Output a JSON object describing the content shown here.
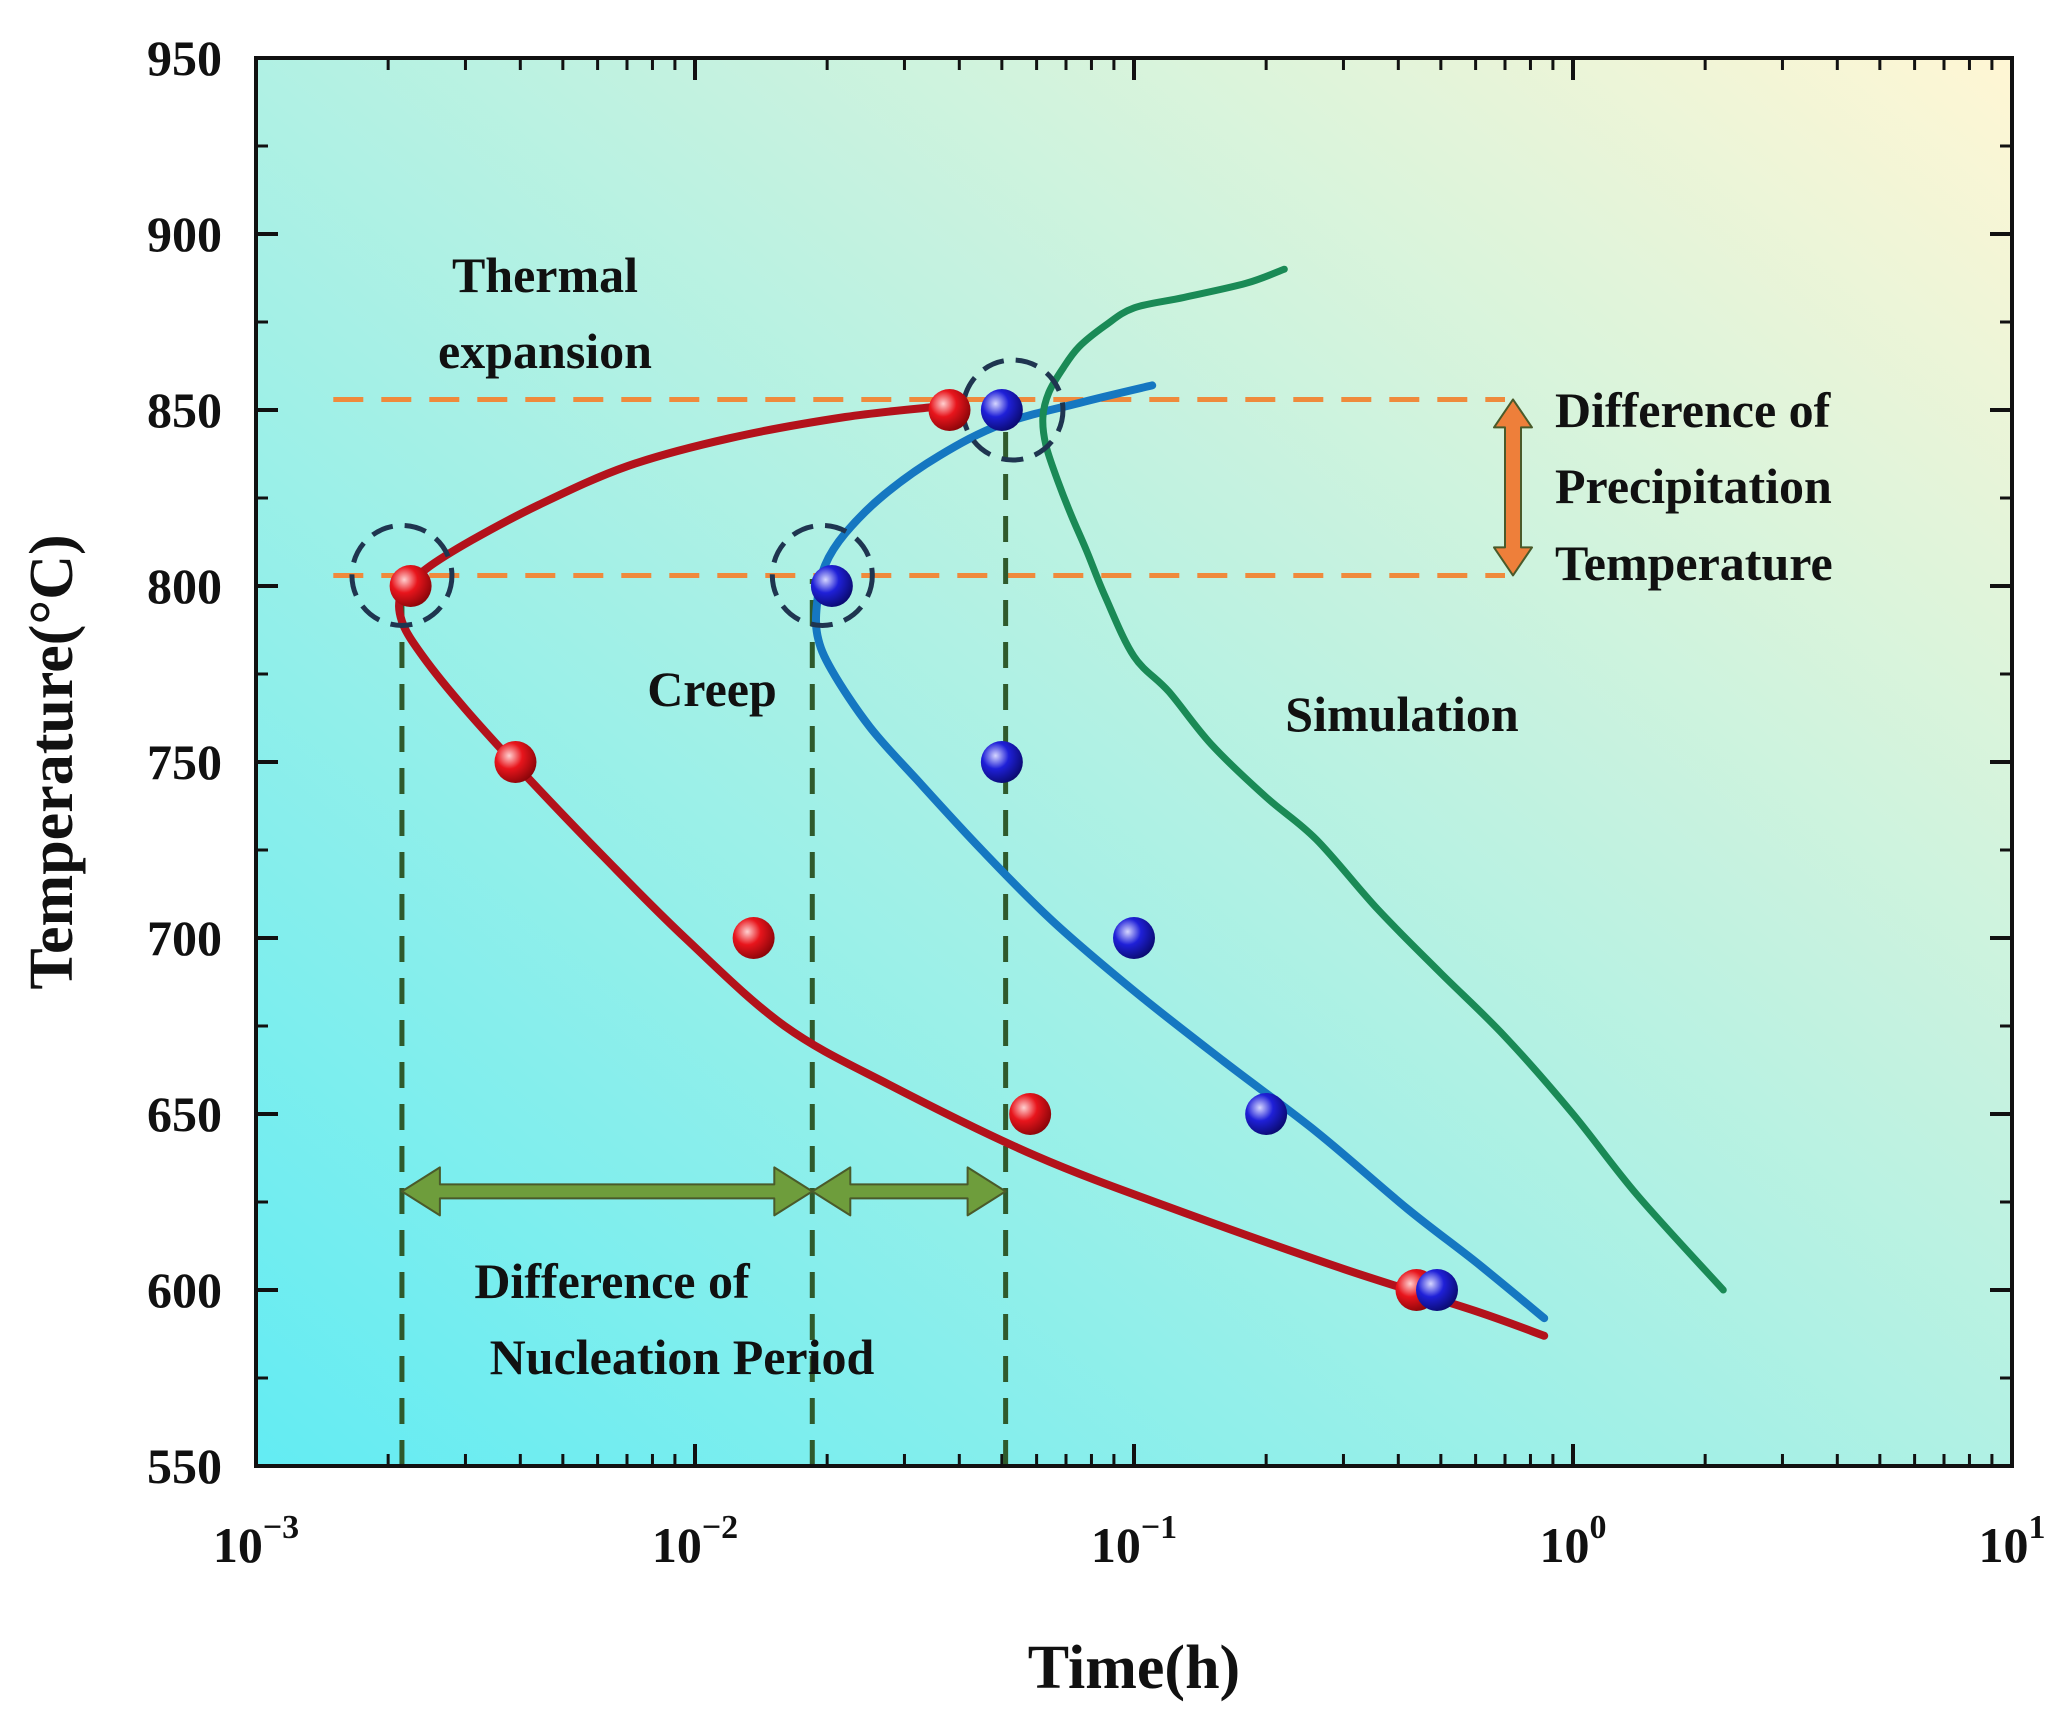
{
  "chart_data": {
    "type": "scatter",
    "xlabel": "Time(h)",
    "ylabel": "Temperature(°C)",
    "xscale": "log",
    "xlim": [
      0.001,
      10
    ],
    "ylim": [
      550,
      950
    ],
    "xticks": [
      {
        "value": 0.001,
        "base": "10",
        "exp": "−3"
      },
      {
        "value": 0.01,
        "base": "10",
        "exp": "−2"
      },
      {
        "value": 0.1,
        "base": "10",
        "exp": "−1"
      },
      {
        "value": 1,
        "base": "10",
        "exp": "0"
      },
      {
        "value": 10,
        "base": "10",
        "exp": "1"
      }
    ],
    "yticks": [
      550,
      600,
      650,
      700,
      750,
      800,
      850,
      900,
      950
    ],
    "background_gradient": {
      "from": "#63ecf3",
      "to": "#fff6d4"
    },
    "series": [
      {
        "name": "Thermal expansion data",
        "kind": "points",
        "color": "#e8151c",
        "points": [
          [
            0.00225,
            800
          ],
          [
            0.0039,
            750
          ],
          [
            0.0136,
            700
          ],
          [
            0.038,
            850
          ],
          [
            0.058,
            650
          ],
          [
            0.44,
            600
          ]
        ]
      },
      {
        "name": "Creep data",
        "kind": "points",
        "color": "#1f20d8",
        "points": [
          [
            0.0205,
            800
          ],
          [
            0.05,
            750
          ],
          [
            0.05,
            850
          ],
          [
            0.1,
            700
          ],
          [
            0.2,
            650
          ],
          [
            0.49,
            600
          ]
        ]
      },
      {
        "name": "Thermal expansion fit",
        "kind": "line",
        "color": "#b3121b",
        "points": [
          [
            0.036,
            851
          ],
          [
            0.022,
            848
          ],
          [
            0.012,
            842
          ],
          [
            0.007,
            834
          ],
          [
            0.0044,
            823
          ],
          [
            0.0031,
            813
          ],
          [
            0.00245,
            805
          ],
          [
            0.00215,
            798
          ],
          [
            0.00215,
            790
          ],
          [
            0.0024,
            780
          ],
          [
            0.003,
            765
          ],
          [
            0.0042,
            745
          ],
          [
            0.0062,
            723
          ],
          [
            0.0095,
            700
          ],
          [
            0.016,
            675
          ],
          [
            0.028,
            658
          ],
          [
            0.06,
            638
          ],
          [
            0.13,
            622
          ],
          [
            0.3,
            606
          ],
          [
            0.6,
            594
          ],
          [
            0.86,
            587
          ]
        ]
      },
      {
        "name": "Creep fit",
        "kind": "line",
        "color": "#1577c1",
        "points": [
          [
            0.11,
            857
          ],
          [
            0.075,
            852
          ],
          [
            0.05,
            846
          ],
          [
            0.036,
            837
          ],
          [
            0.027,
            826
          ],
          [
            0.022,
            815
          ],
          [
            0.0198,
            806
          ],
          [
            0.019,
            796
          ],
          [
            0.019,
            786
          ],
          [
            0.0205,
            776
          ],
          [
            0.025,
            760
          ],
          [
            0.032,
            745
          ],
          [
            0.045,
            725
          ],
          [
            0.065,
            705
          ],
          [
            0.1,
            685
          ],
          [
            0.16,
            665
          ],
          [
            0.26,
            645
          ],
          [
            0.42,
            623
          ],
          [
            0.6,
            608
          ],
          [
            0.86,
            592
          ]
        ]
      },
      {
        "name": "Simulation",
        "kind": "line",
        "color": "#1a8a56",
        "points": [
          [
            0.22,
            890
          ],
          [
            0.18,
            886
          ],
          [
            0.13,
            882
          ],
          [
            0.1,
            879
          ],
          [
            0.086,
            874
          ],
          [
            0.075,
            868
          ],
          [
            0.069,
            862
          ],
          [
            0.064,
            855
          ],
          [
            0.062,
            848
          ],
          [
            0.063,
            840
          ],
          [
            0.067,
            830
          ],
          [
            0.072,
            820
          ],
          [
            0.078,
            810
          ],
          [
            0.086,
            797
          ],
          [
            0.1,
            780
          ],
          [
            0.12,
            770
          ],
          [
            0.15,
            755
          ],
          [
            0.2,
            740
          ],
          [
            0.26,
            728
          ],
          [
            0.36,
            708
          ],
          [
            0.5,
            690
          ],
          [
            0.7,
            672
          ],
          [
            1.0,
            650
          ],
          [
            1.4,
            627
          ],
          [
            2.2,
            600
          ]
        ]
      }
    ],
    "reference_lines": [
      {
        "orientation": "horizontal",
        "y": 853,
        "from_x": 0.0015,
        "to_x": 0.7,
        "color": "#ef8a3c"
      },
      {
        "orientation": "horizontal",
        "y": 803,
        "from_x": 0.0015,
        "to_x": 0.7,
        "color": "#ef8a3c"
      },
      {
        "orientation": "vertical",
        "x": 0.00215,
        "from_y": 550,
        "to_y": 800,
        "color": "#2f5a2c"
      },
      {
        "orientation": "vertical",
        "x": 0.0185,
        "from_y": 550,
        "to_y": 802,
        "color": "#2f5a2c"
      },
      {
        "orientation": "vertical",
        "x": 0.051,
        "from_y": 550,
        "to_y": 848,
        "color": "#2f5a2c"
      }
    ],
    "highlight_circles": [
      {
        "x": 0.00215,
        "y": 803
      },
      {
        "x": 0.0195,
        "y": 803
      },
      {
        "x": 0.053,
        "y": 850
      }
    ],
    "arrows": [
      {
        "name": "nucleation-arrow-left",
        "from": [
          0.00215,
          628
        ],
        "to": [
          0.0185,
          628
        ],
        "color": "#6e9d3c"
      },
      {
        "name": "nucleation-arrow-right",
        "from": [
          0.0185,
          628
        ],
        "to": [
          0.051,
          628
        ],
        "color": "#6e9d3c"
      },
      {
        "name": "precipitation-arrow",
        "from": [
          0.73,
          853
        ],
        "to": [
          0.73,
          803
        ],
        "color": "#ee7f3a"
      }
    ],
    "annotations": {
      "thermal_expansion_line1": "Thermal",
      "thermal_expansion_line2": "expansion",
      "creep": "Creep",
      "simulation": "Simulation",
      "precipitation_line1": "Difference of",
      "precipitation_line2": "Precipitation",
      "precipitation_line3": "Temperature",
      "nucleation_line1": "Difference of",
      "nucleation_line2": "Nucleation Period"
    }
  }
}
